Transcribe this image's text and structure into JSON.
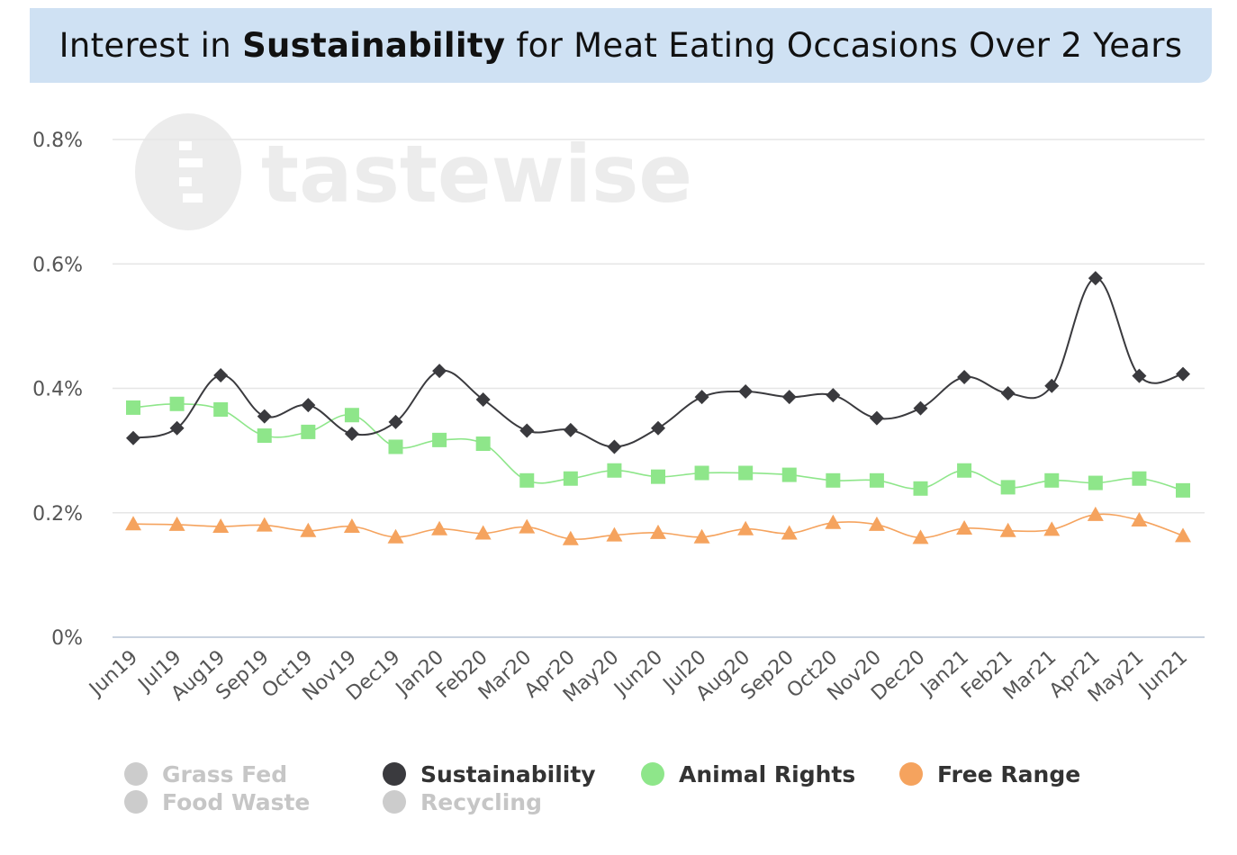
{
  "title": {
    "prefix": "Interest in ",
    "bold": "Sustainability",
    "suffix": " for Meat Eating Occasions Over 2 Years"
  },
  "watermark": {
    "text": "tastewise",
    "icon": "tastewise-logo-icon"
  },
  "colors": {
    "title_bg": "#cfe1f3",
    "sustainability": "#3a3a3e",
    "animal_rights": "#8ee68a",
    "free_range": "#f5a35e",
    "inactive": "#cccccc",
    "grid": "#e6e6e6",
    "axis_label": "#555555"
  },
  "chart_data": {
    "type": "line",
    "categories": [
      "Jun19",
      "Jul19",
      "Aug19",
      "Sep19",
      "Oct19",
      "Nov19",
      "Dec19",
      "Jan20",
      "Feb20",
      "Mar20",
      "Apr20",
      "May20",
      "Jun20",
      "Jul20",
      "Aug20",
      "Sep20",
      "Oct20",
      "Nov20",
      "Dec20",
      "Jan21",
      "Feb21",
      "Mar21",
      "Apr21",
      "May21",
      "Jun21"
    ],
    "ylim": [
      0,
      0.8
    ],
    "yticks": [
      "0%",
      "0.2%",
      "0.4%",
      "0.6%",
      "0.8%"
    ],
    "ytick_values": [
      0,
      0.2,
      0.4,
      0.6,
      0.8
    ],
    "grid": true,
    "legend_position": "bottom",
    "series": [
      {
        "name": "Sustainability",
        "marker": "diamond",
        "color": "#3a3a3e",
        "values": [
          0.32,
          0.336,
          0.421,
          0.355,
          0.373,
          0.327,
          0.346,
          0.428,
          0.382,
          0.332,
          0.333,
          0.306,
          0.336,
          0.386,
          0.395,
          0.386,
          0.389,
          0.352,
          0.368,
          0.418,
          0.392,
          0.404,
          0.577,
          0.42,
          0.423
        ]
      },
      {
        "name": "Animal Rights",
        "marker": "square",
        "color": "#8ee68a",
        "values": [
          0.369,
          0.375,
          0.366,
          0.324,
          0.33,
          0.357,
          0.306,
          0.317,
          0.311,
          0.252,
          0.255,
          0.268,
          0.258,
          0.264,
          0.264,
          0.261,
          0.252,
          0.252,
          0.239,
          0.268,
          0.241,
          0.252,
          0.248,
          0.255,
          0.236
        ]
      },
      {
        "name": "Free Range",
        "marker": "triangle",
        "color": "#f5a35e",
        "values": [
          0.182,
          0.181,
          0.178,
          0.18,
          0.171,
          0.178,
          0.161,
          0.174,
          0.167,
          0.177,
          0.158,
          0.164,
          0.168,
          0.161,
          0.174,
          0.167,
          0.184,
          0.181,
          0.16,
          0.175,
          0.171,
          0.173,
          0.197,
          0.188,
          0.163
        ]
      }
    ],
    "legend": [
      {
        "name": "Grass Fed",
        "active": false
      },
      {
        "name": "Food Waste",
        "active": false
      },
      {
        "name": "Sustainability",
        "active": true
      },
      {
        "name": "Recycling",
        "active": false
      },
      {
        "name": "Animal Rights",
        "active": true
      },
      {
        "name": "Free Range",
        "active": true
      }
    ]
  }
}
